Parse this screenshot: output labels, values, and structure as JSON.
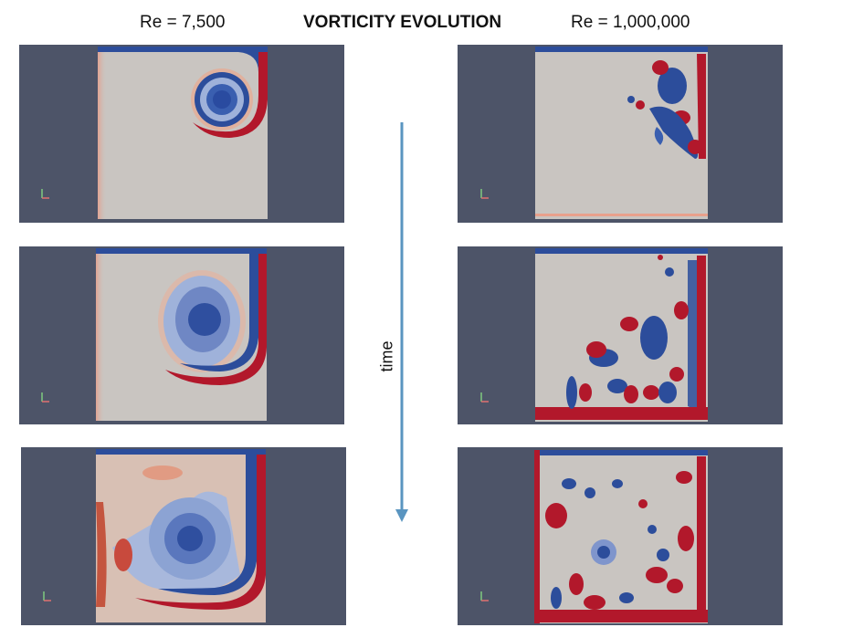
{
  "header": {
    "left": "Re = 7,500",
    "title": "VORTICITY EVOLUTION",
    "right": "Re = 1,000,000"
  },
  "time_axis": {
    "label": "time"
  },
  "colors": {
    "panel_background": "#4d5468",
    "domain_fill": "#c9c5c1",
    "positive_vorticity": "#b2182b",
    "negative_vorticity": "#2c4d9b",
    "arrow": "#5a95c0"
  },
  "panels": [
    {
      "column": "Re = 7,500",
      "step": 1
    },
    {
      "column": "Re = 7,500",
      "step": 2
    },
    {
      "column": "Re = 7,500",
      "step": 3
    },
    {
      "column": "Re = 1,000,000",
      "step": 1
    },
    {
      "column": "Re = 1,000,000",
      "step": 2
    },
    {
      "column": "Re = 1,000,000",
      "step": 3
    }
  ]
}
